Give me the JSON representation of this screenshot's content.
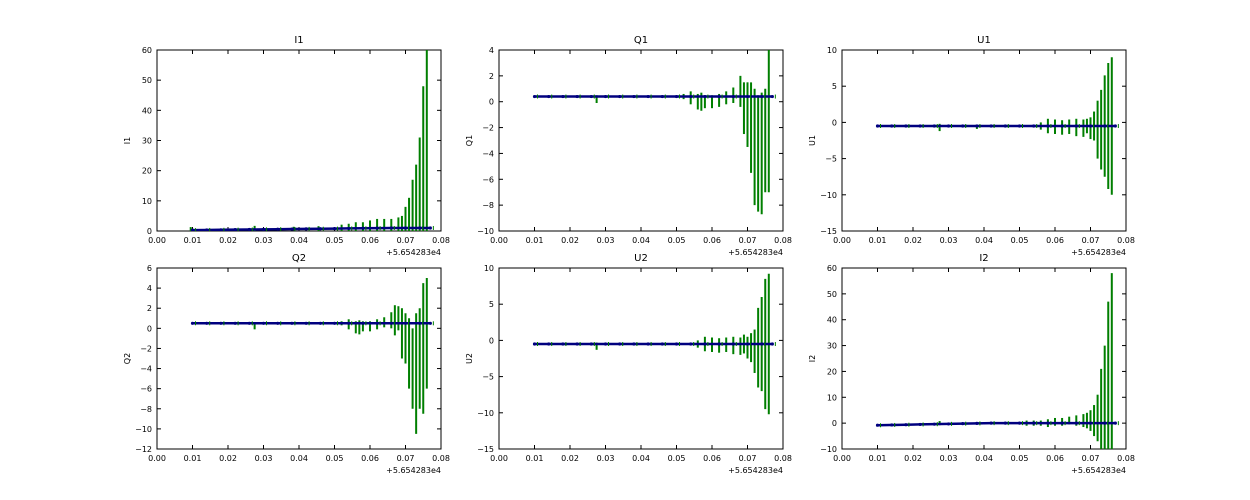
{
  "figure": {
    "background": "#ffffff",
    "colors": {
      "error_bar": "#007f00",
      "marker": "#00007f",
      "axes": "#000000"
    }
  },
  "chart_data": [
    {
      "type": "scatter",
      "title": "I1",
      "xlabel": "",
      "ylabel": "I1",
      "x_offset_label": "+5.654283e4",
      "xlim": [
        0.0,
        0.08
      ],
      "ylim": [
        0,
        60
      ],
      "xticks": [
        "0.00",
        "0.01",
        "0.02",
        "0.03",
        "0.04",
        "0.05",
        "0.06",
        "0.07",
        "0.08"
      ],
      "yticks": [
        "0",
        "10",
        "20",
        "30",
        "40",
        "50",
        "60"
      ],
      "grid": false,
      "series": [
        {
          "kind": "points",
          "x": [
            0.01,
            0.014,
            0.018,
            0.022,
            0.026,
            0.03,
            0.034,
            0.038,
            0.042,
            0.046,
            0.05,
            0.054,
            0.058,
            0.062,
            0.066,
            0.07,
            0.074,
            0.077
          ],
          "y": [
            0.3,
            0.35,
            0.4,
            0.45,
            0.5,
            0.55,
            0.6,
            0.65,
            0.7,
            0.75,
            0.8,
            0.85,
            0.9,
            0.95,
            1.0,
            1.0,
            1.0,
            1.0
          ]
        },
        {
          "kind": "error_bars",
          "x": [
            0.0095,
            0.0275,
            0.0385,
            0.0455,
            0.052,
            0.054,
            0.056,
            0.058,
            0.06,
            0.062,
            0.064,
            0.066,
            0.068,
            0.069,
            0.07,
            0.071,
            0.072,
            0.073,
            0.074,
            0.075,
            0.076
          ],
          "y": [
            0.5,
            0.7,
            0.8,
            0.8,
            0.9,
            0.9,
            0.9,
            0.9,
            1.0,
            1.0,
            1.0,
            1.0,
            1.0,
            1.0,
            1.0,
            1.0,
            1.0,
            1.0,
            1.0,
            1.0,
            1.0
          ],
          "err": [
            0.8,
            1.0,
            0.6,
            0.8,
            1.2,
            1.5,
            2.0,
            2.0,
            2.5,
            3.0,
            3.0,
            3.0,
            3.5,
            4.0,
            7.0,
            10.0,
            16.0,
            21.0,
            30.0,
            47.0,
            60.0
          ]
        }
      ]
    },
    {
      "type": "scatter",
      "title": "Q1",
      "xlabel": "",
      "ylabel": "Q1",
      "x_offset_label": "+5.654283e4",
      "xlim": [
        0.0,
        0.08
      ],
      "ylim": [
        -10,
        4
      ],
      "xticks": [
        "0.00",
        "0.01",
        "0.02",
        "0.03",
        "0.04",
        "0.05",
        "0.06",
        "0.07",
        "0.08"
      ],
      "yticks": [
        "−10",
        "−8",
        "−6",
        "−4",
        "−2",
        "0",
        "2",
        "4"
      ],
      "grid": false,
      "series": [
        {
          "kind": "points",
          "x": [
            0.01,
            0.014,
            0.018,
            0.022,
            0.026,
            0.03,
            0.034,
            0.038,
            0.042,
            0.046,
            0.05,
            0.054,
            0.058,
            0.062,
            0.066,
            0.07,
            0.074,
            0.077
          ],
          "y": [
            0.4,
            0.4,
            0.4,
            0.4,
            0.4,
            0.4,
            0.4,
            0.4,
            0.4,
            0.4,
            0.4,
            0.4,
            0.4,
            0.4,
            0.4,
            0.4,
            0.4,
            0.4
          ]
        },
        {
          "kind": "error_bars",
          "x": [
            0.0275,
            0.052,
            0.054,
            0.056,
            0.057,
            0.058,
            0.06,
            0.062,
            0.064,
            0.066,
            0.068,
            0.069,
            0.07,
            0.071,
            0.072,
            0.073,
            0.074,
            0.075,
            0.076
          ],
          "y": [
            0.2,
            0.4,
            0.3,
            0.0,
            0.0,
            0.0,
            0.0,
            0.1,
            0.3,
            0.5,
            0.8,
            -0.5,
            -1.0,
            -2.0,
            -3.5,
            -4.0,
            -4.0,
            -3.0,
            -1.5
          ],
          "err": [
            0.3,
            0.2,
            0.5,
            0.6,
            0.7,
            0.5,
            0.5,
            0.5,
            0.5,
            0.6,
            1.2,
            2.0,
            2.5,
            3.5,
            4.5,
            4.5,
            4.7,
            4.0,
            5.5
          ]
        }
      ]
    },
    {
      "type": "scatter",
      "title": "U1",
      "xlabel": "",
      "ylabel": "U1",
      "x_offset_label": "+5.654283e4",
      "xlim": [
        0.0,
        0.08
      ],
      "ylim": [
        -15,
        10
      ],
      "xticks": [
        "0.00",
        "0.01",
        "0.02",
        "0.03",
        "0.04",
        "0.05",
        "0.06",
        "0.07",
        "0.08"
      ],
      "yticks": [
        "−15",
        "−10",
        "−5",
        "0",
        "5",
        "10"
      ],
      "grid": false,
      "series": [
        {
          "kind": "points",
          "x": [
            0.01,
            0.014,
            0.018,
            0.022,
            0.026,
            0.03,
            0.034,
            0.038,
            0.042,
            0.046,
            0.05,
            0.054,
            0.058,
            0.062,
            0.066,
            0.07,
            0.074,
            0.077
          ],
          "y": [
            -0.5,
            -0.5,
            -0.5,
            -0.5,
            -0.5,
            -0.5,
            -0.5,
            -0.5,
            -0.5,
            -0.5,
            -0.5,
            -0.5,
            -0.5,
            -0.5,
            -0.5,
            -0.5,
            -0.5,
            -0.5
          ]
        },
        {
          "kind": "error_bars",
          "x": [
            0.0275,
            0.038,
            0.056,
            0.058,
            0.06,
            0.062,
            0.064,
            0.066,
            0.068,
            0.069,
            0.07,
            0.071,
            0.072,
            0.073,
            0.074,
            0.075,
            0.076
          ],
          "y": [
            -0.7,
            -0.6,
            -0.5,
            -0.5,
            -0.6,
            -0.7,
            -0.6,
            -0.7,
            -0.8,
            -0.5,
            -0.8,
            -0.5,
            -1.0,
            -1.0,
            -0.5,
            -0.5,
            -0.5
          ],
          "err": [
            0.5,
            0.3,
            0.5,
            1.0,
            1.0,
            1.0,
            1.0,
            1.2,
            1.2,
            1.0,
            1.5,
            2.0,
            4.0,
            5.5,
            7.0,
            8.7,
            9.5
          ]
        }
      ]
    },
    {
      "type": "scatter",
      "title": "Q2",
      "xlabel": "",
      "ylabel": "Q2",
      "x_offset_label": "+5.654283e4",
      "xlim": [
        0.0,
        0.08
      ],
      "ylim": [
        -12,
        6
      ],
      "xticks": [
        "0.00",
        "0.01",
        "0.02",
        "0.03",
        "0.04",
        "0.05",
        "0.06",
        "0.07",
        "0.08"
      ],
      "yticks": [
        "−12",
        "−10",
        "−8",
        "−6",
        "−4",
        "−2",
        "0",
        "2",
        "4",
        "6"
      ],
      "grid": false,
      "series": [
        {
          "kind": "points",
          "x": [
            0.01,
            0.014,
            0.018,
            0.022,
            0.026,
            0.03,
            0.034,
            0.038,
            0.042,
            0.046,
            0.05,
            0.054,
            0.058,
            0.062,
            0.066,
            0.07,
            0.074,
            0.077
          ],
          "y": [
            0.5,
            0.5,
            0.5,
            0.5,
            0.5,
            0.5,
            0.5,
            0.5,
            0.5,
            0.5,
            0.5,
            0.5,
            0.5,
            0.5,
            0.5,
            0.5,
            0.5,
            0.5
          ]
        },
        {
          "kind": "error_bars",
          "x": [
            0.0275,
            0.052,
            0.054,
            0.056,
            0.057,
            0.058,
            0.06,
            0.062,
            0.064,
            0.066,
            0.067,
            0.068,
            0.069,
            0.07,
            0.071,
            0.072,
            0.073,
            0.074,
            0.075,
            0.076
          ],
          "y": [
            0.2,
            0.5,
            0.4,
            0.1,
            0.1,
            0.2,
            0.2,
            0.4,
            0.6,
            0.8,
            0.8,
            1.0,
            -0.5,
            -1.0,
            -2.5,
            -4.0,
            -4.5,
            -3.0,
            -2.0,
            -0.5
          ],
          "err": [
            0.3,
            0.2,
            0.5,
            0.6,
            0.7,
            0.5,
            0.5,
            0.5,
            0.5,
            0.8,
            1.5,
            1.2,
            2.5,
            2.5,
            3.5,
            4.0,
            6.0,
            5.0,
            6.5,
            5.5
          ]
        }
      ]
    },
    {
      "type": "scatter",
      "title": "U2",
      "xlabel": "",
      "ylabel": "U2",
      "x_offset_label": "+5.654283e4",
      "xlim": [
        0.0,
        0.08
      ],
      "ylim": [
        -15,
        10
      ],
      "xticks": [
        "0.00",
        "0.01",
        "0.02",
        "0.03",
        "0.04",
        "0.05",
        "0.06",
        "0.07",
        "0.08"
      ],
      "yticks": [
        "−15",
        "−10",
        "−5",
        "0",
        "5",
        "10"
      ],
      "grid": false,
      "series": [
        {
          "kind": "points",
          "x": [
            0.01,
            0.014,
            0.018,
            0.022,
            0.026,
            0.03,
            0.034,
            0.038,
            0.042,
            0.046,
            0.05,
            0.054,
            0.058,
            0.062,
            0.066,
            0.07,
            0.074,
            0.077
          ],
          "y": [
            -0.5,
            -0.5,
            -0.5,
            -0.5,
            -0.5,
            -0.5,
            -0.5,
            -0.5,
            -0.5,
            -0.5,
            -0.5,
            -0.5,
            -0.5,
            -0.5,
            -0.5,
            -0.5,
            -0.5,
            -0.5
          ]
        },
        {
          "kind": "error_bars",
          "x": [
            0.0275,
            0.056,
            0.058,
            0.06,
            0.062,
            0.064,
            0.066,
            0.068,
            0.069,
            0.07,
            0.071,
            0.072,
            0.073,
            0.074,
            0.075,
            0.076
          ],
          "y": [
            -0.8,
            -0.5,
            -0.5,
            -0.6,
            -0.7,
            -0.6,
            -0.7,
            -0.8,
            -0.5,
            -1.0,
            -1.0,
            -1.5,
            -1.0,
            -0.5,
            -0.5,
            -0.5
          ],
          "err": [
            0.5,
            0.5,
            1.0,
            1.0,
            1.0,
            1.0,
            1.2,
            1.2,
            1.3,
            1.5,
            2.0,
            3.0,
            5.5,
            6.5,
            9.0,
            9.7
          ]
        }
      ]
    },
    {
      "type": "scatter",
      "title": "I2",
      "xlabel": "",
      "ylabel": "I2",
      "x_offset_label": "+5.654283e4",
      "xlim": [
        0.0,
        0.08
      ],
      "ylim": [
        -10,
        60
      ],
      "xticks": [
        "0.00",
        "0.01",
        "0.02",
        "0.03",
        "0.04",
        "0.05",
        "0.06",
        "0.07",
        "0.08"
      ],
      "yticks": [
        "−10",
        "0",
        "10",
        "20",
        "30",
        "40",
        "50",
        "60"
      ],
      "grid": false,
      "series": [
        {
          "kind": "points",
          "x": [
            0.01,
            0.014,
            0.018,
            0.022,
            0.026,
            0.03,
            0.034,
            0.038,
            0.042,
            0.046,
            0.05,
            0.054,
            0.058,
            0.062,
            0.066,
            0.07,
            0.074,
            0.077
          ],
          "y": [
            -0.8,
            -0.7,
            -0.6,
            -0.5,
            -0.4,
            -0.3,
            -0.2,
            -0.1,
            0.0,
            0.0,
            0.0,
            0.0,
            0.0,
            0.0,
            0.0,
            0.0,
            0.0,
            0.0
          ]
        },
        {
          "kind": "error_bars",
          "x": [
            0.0275,
            0.052,
            0.054,
            0.056,
            0.058,
            0.06,
            0.062,
            0.064,
            0.066,
            0.068,
            0.069,
            0.07,
            0.071,
            0.072,
            0.073,
            0.074,
            0.075,
            0.076
          ],
          "y": [
            0.0,
            0.0,
            0.0,
            0.0,
            0.0,
            0.5,
            0.5,
            1.0,
            1.0,
            1.0,
            1.0,
            1.0,
            1.0,
            2.0,
            3.0,
            5.0,
            10.0,
            20.0
          ],
          "err": [
            0.8,
            1.0,
            1.0,
            1.0,
            1.5,
            1.5,
            1.5,
            1.5,
            2.0,
            2.5,
            3.0,
            4.0,
            6.0,
            9.0,
            18.0,
            25.0,
            37.0,
            38.0
          ]
        }
      ]
    }
  ]
}
